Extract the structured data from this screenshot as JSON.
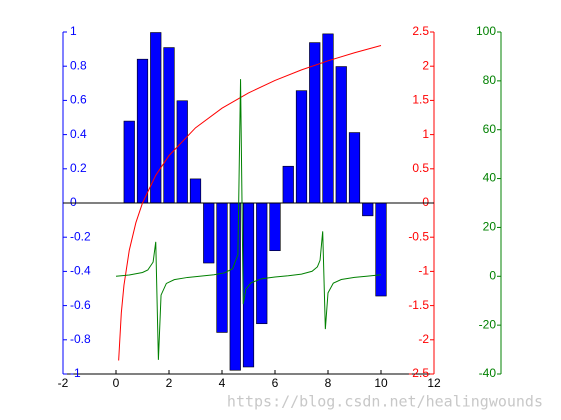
{
  "chart_data": {
    "type": "combo",
    "xlim": [
      -2,
      12
    ],
    "xticks": [
      -2,
      0,
      2,
      4,
      6,
      8,
      10,
      12
    ],
    "ylim": [
      -1,
      1
    ],
    "yticks": [
      -1,
      -0.8,
      -0.6,
      -0.4,
      -0.2,
      0,
      0.2,
      0.4,
      0.6,
      0.8,
      1
    ],
    "y2lim": [
      -2.5,
      2.5
    ],
    "y2ticks": [
      -2.5,
      -2,
      -1.5,
      -1,
      -0.5,
      0,
      0.5,
      1,
      1.5,
      2,
      2.5
    ],
    "y3lim": [
      -40,
      100
    ],
    "y3ticks": [
      -40,
      -20,
      0,
      20,
      40,
      60,
      80,
      100
    ],
    "series": [
      {
        "type": "bar",
        "color": "#0000ff",
        "x": [
          0.5,
          1,
          1.5,
          2,
          2.5,
          3,
          3.5,
          4,
          4.5,
          5,
          5.5,
          6,
          6.5,
          7,
          7.5,
          8,
          8.5,
          9,
          9.5,
          10
        ],
        "values": [
          0.479,
          0.841,
          0.997,
          0.909,
          0.598,
          0.141,
          -0.351,
          -0.757,
          -0.978,
          -0.959,
          -0.706,
          -0.279,
          0.215,
          0.657,
          0.938,
          0.989,
          0.798,
          0.412,
          -0.075,
          -0.544
        ]
      },
      {
        "type": "line",
        "axis": "y2",
        "color": "#ff0000",
        "x": [
          0.1,
          0.2,
          0.3,
          0.5,
          0.75,
          1,
          1.5,
          2,
          3,
          4,
          5,
          6,
          7,
          8,
          9,
          10
        ],
        "values": [
          -2.303,
          -1.609,
          -1.204,
          -0.693,
          -0.288,
          0,
          0.405,
          0.693,
          1.099,
          1.386,
          1.609,
          1.792,
          1.946,
          2.079,
          2.197,
          2.303
        ]
      },
      {
        "type": "line",
        "axis": "y3",
        "color": "#008000",
        "x": [
          0,
          0.5,
          1,
          1.2,
          1.4,
          1.5,
          1.6,
          1.7,
          1.9,
          2.2,
          2.7,
          3.2,
          3.7,
          4.1,
          4.4,
          4.6,
          4.7,
          4.8,
          4.9,
          5.1,
          5.5,
          6,
          6.5,
          7,
          7.4,
          7.6,
          7.7,
          7.8,
          7.9,
          8,
          8.2,
          8.5,
          9,
          9.5,
          10
        ],
        "values": [
          0,
          0.546,
          1.557,
          2.572,
          5.798,
          14.1,
          -34.23,
          -7.7,
          -2.93,
          -1.374,
          -0.473,
          0.058,
          0.645,
          1.424,
          3.096,
          8.86,
          80.7,
          -11.38,
          -5.27,
          -2.62,
          -0.996,
          -0.291,
          0.22,
          0.871,
          2.05,
          3.87,
          6.55,
          18.4,
          -21.6,
          -6.8,
          -2.82,
          -1.33,
          -0.452,
          0.075,
          0.648
        ]
      }
    ]
  },
  "watermark": "https://blog.csdn.net/healingwounds"
}
